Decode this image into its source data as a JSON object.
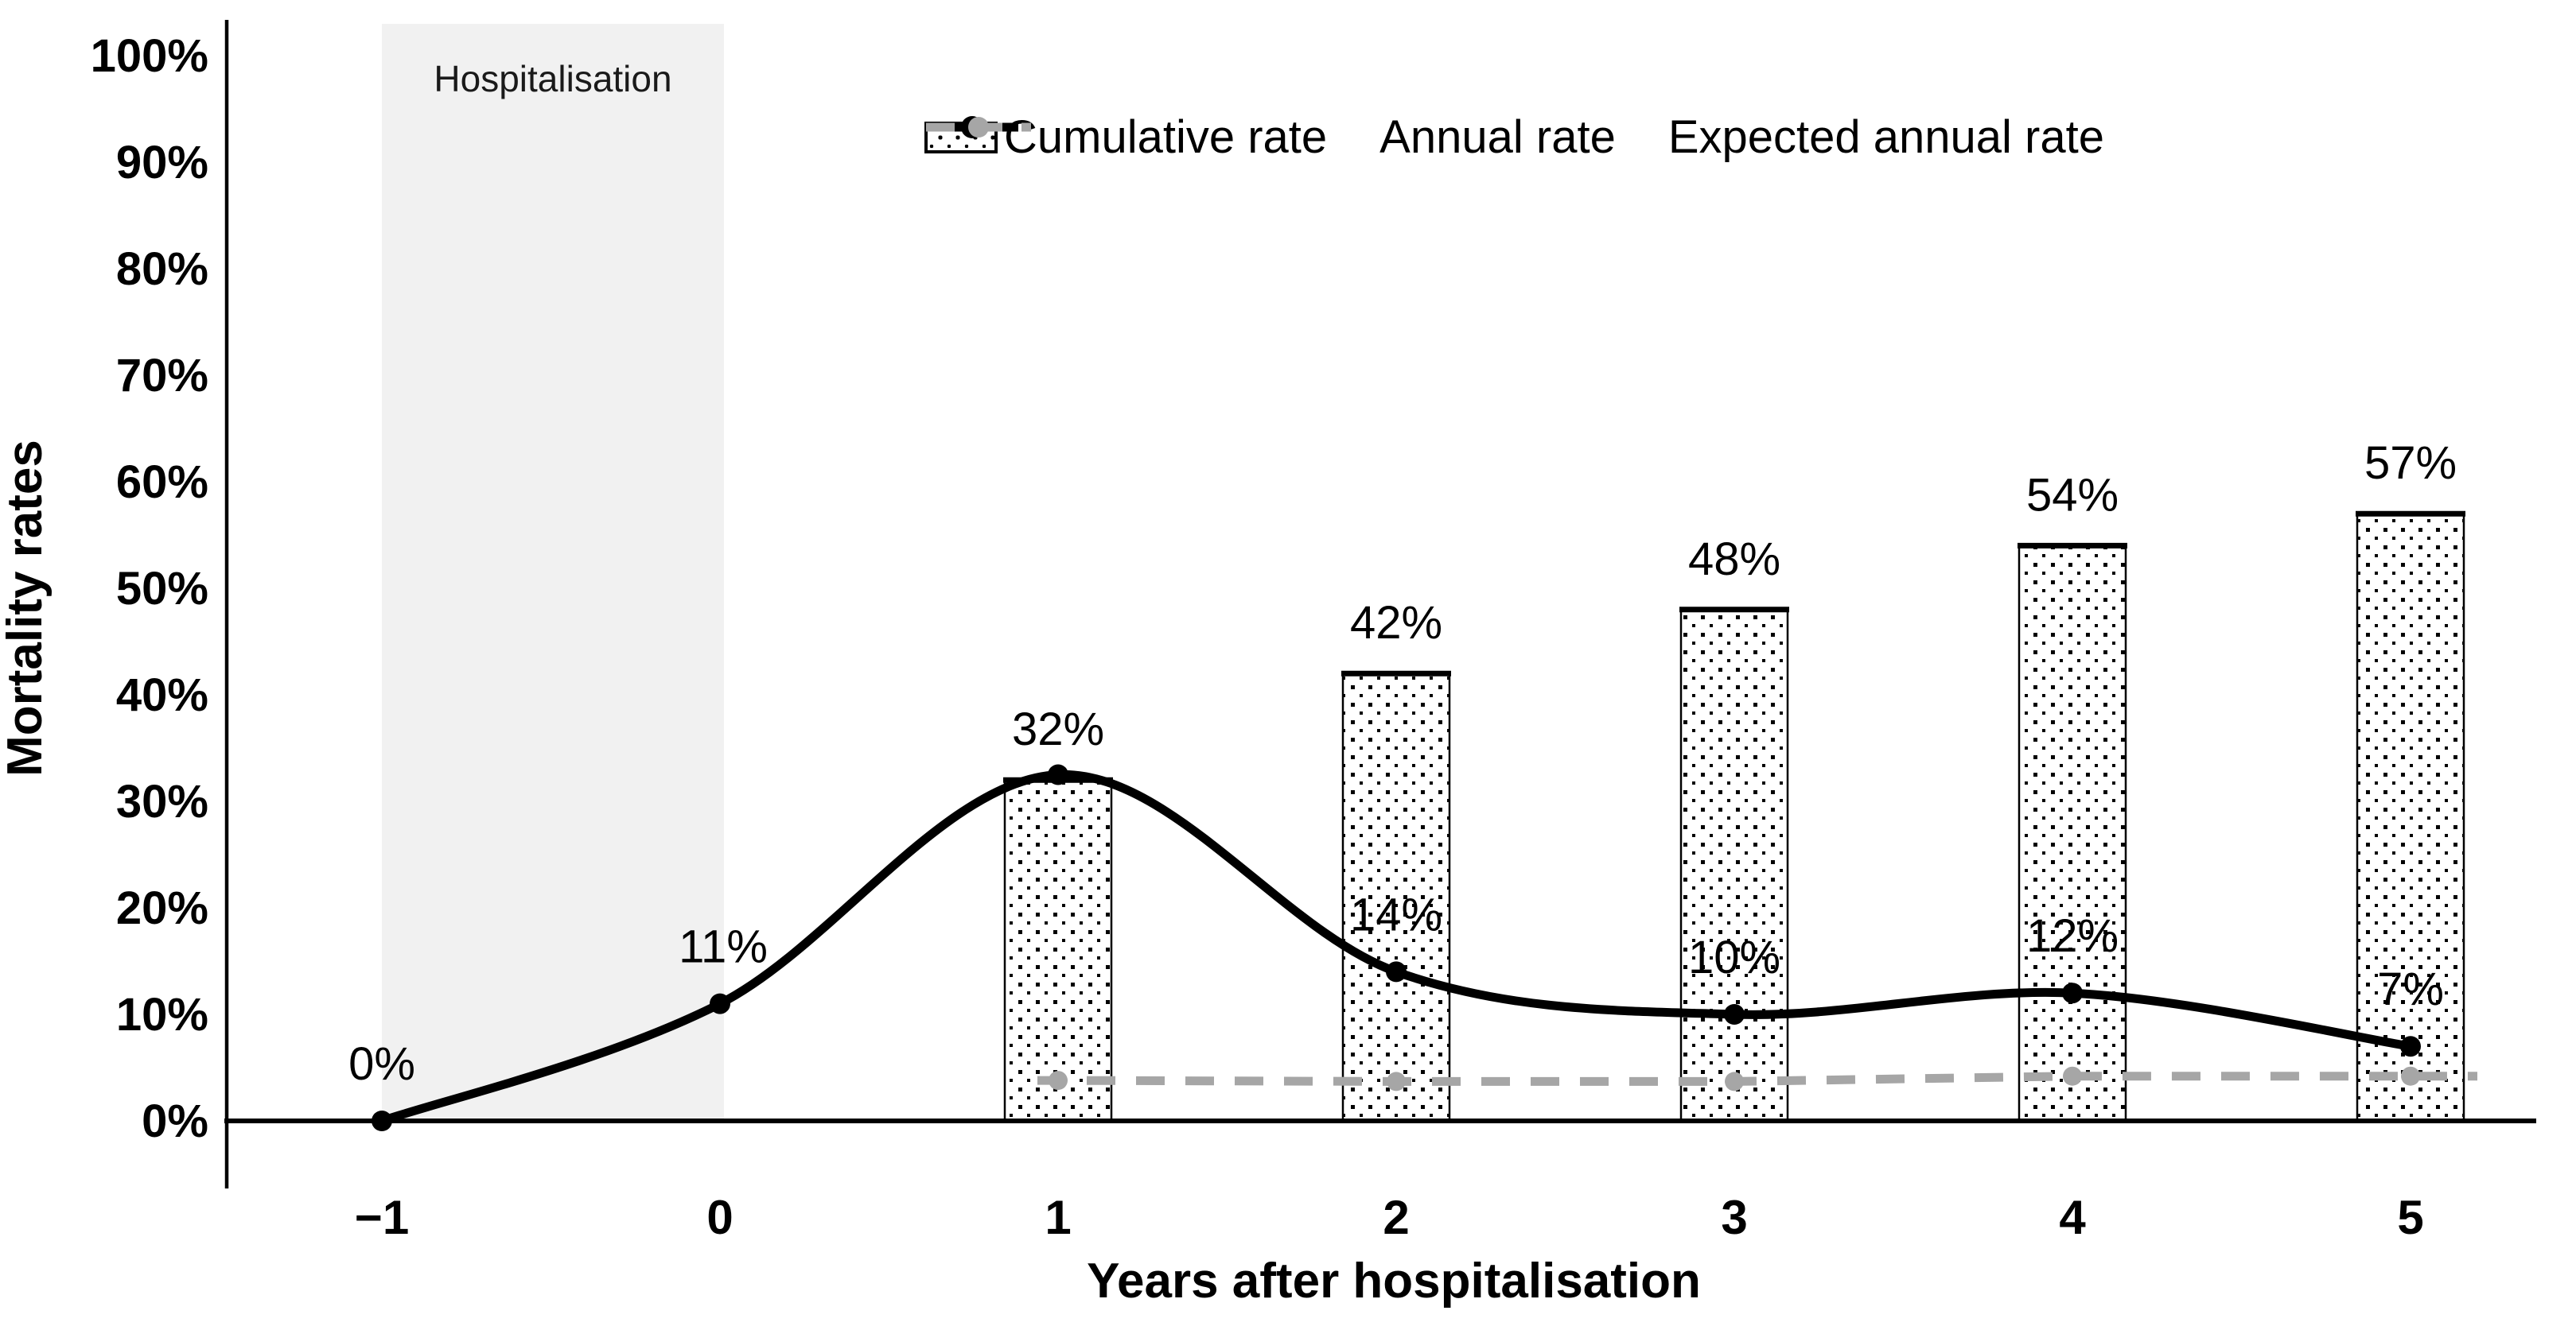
{
  "chart_data": {
    "type": "combo",
    "title": "",
    "xlabel": "Years after hospitalisation",
    "ylabel": "Mortality rates",
    "categories": [
      -1,
      0,
      1,
      2,
      3,
      4,
      5
    ],
    "x_tick_labels": [
      "−1",
      "0",
      "1",
      "2",
      "3",
      "4",
      "5"
    ],
    "y_tick_values": [
      0,
      10,
      20,
      30,
      40,
      50,
      60,
      70,
      80,
      90,
      100
    ],
    "y_tick_labels": [
      "0%",
      "10%",
      "20%",
      "30%",
      "40%",
      "50%",
      "60%",
      "70%",
      "80%",
      "90%",
      "100%"
    ],
    "ylim": [
      0,
      100
    ],
    "grid": false,
    "legend_position": "top",
    "annotation_region": {
      "label": "Hospitalisation",
      "x_from": -1,
      "x_to": 0
    },
    "series": [
      {
        "name": "Cumulative rate",
        "type": "bar",
        "x": [
          1,
          2,
          3,
          4,
          5
        ],
        "values": [
          32,
          42,
          48,
          54,
          57
        ],
        "labels": [
          "32%",
          "42%",
          "48%",
          "54%",
          "57%"
        ],
        "fill": "white with black dot pattern",
        "border_color": "#000000"
      },
      {
        "name": "Annual rate",
        "type": "line",
        "x": [
          -1,
          0,
          1,
          2,
          3,
          4,
          5
        ],
        "values": [
          0,
          11,
          32.5,
          14,
          10,
          12,
          7
        ],
        "labels": [
          "0%",
          "11%",
          null,
          "14%",
          "10%",
          "12%",
          "7%"
        ],
        "color": "#000000",
        "smooth": true,
        "marker": "circle"
      },
      {
        "name": "Expected annual rate",
        "type": "line",
        "x": [
          1,
          2,
          3,
          4,
          5
        ],
        "values": [
          3.8,
          3.7,
          3.7,
          4.2,
          4.2
        ],
        "labels": [
          null,
          null,
          null,
          null,
          null
        ],
        "color": "#a6a6a6",
        "dashed": true,
        "marker": "circle"
      }
    ]
  },
  "legend": {
    "items": [
      {
        "label": "Cumulative rate",
        "marker": "dotted-box"
      },
      {
        "label": "Annual rate",
        "marker": "black-line-dot"
      },
      {
        "label": "Expected annual rate",
        "marker": "gray-dashed-dot"
      }
    ]
  },
  "colors": {
    "annual_line": "#000000",
    "expected_line": "#a6a6a6",
    "hospitalisation_band": "#f1f1f1",
    "text": "#000000"
  }
}
